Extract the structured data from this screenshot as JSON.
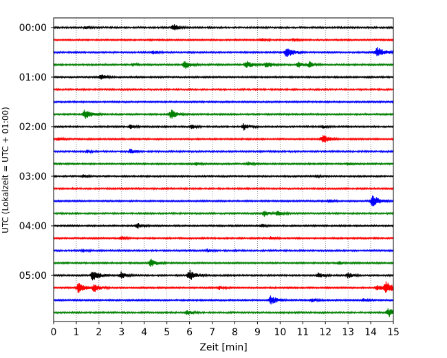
{
  "chart_data": {
    "type": "line",
    "title": "",
    "xlabel": "Zeit  [min]",
    "ylabel": "UTC (Lokalzeit = UTC + 01:00)",
    "xlim": [
      0,
      15
    ],
    "x_ticks": [
      "0",
      "1",
      "2",
      "3",
      "4",
      "5",
      "6",
      "7",
      "8",
      "9",
      "10",
      "11",
      "12",
      "13",
      "14",
      "15"
    ],
    "y_tick_labels": [
      "00:00",
      "01:00",
      "02:00",
      "03:00",
      "04:00",
      "05:00"
    ],
    "y_tick_row_index": [
      0,
      4,
      8,
      12,
      16,
      20
    ],
    "grid": "vertical dotted at each minute",
    "trace_colors_cycle": [
      "#000000",
      "#ff0000",
      "#0000ff",
      "#008000"
    ],
    "rows": [
      {
        "start": "00:00",
        "events": [
          {
            "t": 5.3,
            "a": 0.6
          },
          {
            "t": 1.4,
            "a": 0.25
          }
        ]
      },
      {
        "start": "00:15",
        "events": [
          {
            "t": 9.2,
            "a": 0.3
          },
          {
            "t": 10.6,
            "a": 0.25
          }
        ]
      },
      {
        "start": "00:30",
        "events": [
          {
            "t": 10.3,
            "a": 1.0
          },
          {
            "t": 14.3,
            "a": 1.0
          },
          {
            "t": 4.4,
            "a": 0.3
          }
        ]
      },
      {
        "start": "00:45",
        "events": [
          {
            "t": 5.8,
            "a": 0.7
          },
          {
            "t": 8.5,
            "a": 0.7
          },
          {
            "t": 9.4,
            "a": 0.6
          },
          {
            "t": 10.8,
            "a": 0.5
          },
          {
            "t": 11.3,
            "a": 0.5
          },
          {
            "t": 3.5,
            "a": 0.25
          }
        ]
      },
      {
        "start": "01:00",
        "events": [
          {
            "t": 2.1,
            "a": 0.5
          }
        ]
      },
      {
        "start": "01:15",
        "events": []
      },
      {
        "start": "01:30",
        "events": []
      },
      {
        "start": "01:45",
        "events": [
          {
            "t": 1.4,
            "a": 0.9
          },
          {
            "t": 5.2,
            "a": 0.8
          }
        ]
      },
      {
        "start": "02:00",
        "events": [
          {
            "t": 3.4,
            "a": 0.35
          },
          {
            "t": 6.1,
            "a": 0.3
          },
          {
            "t": 8.4,
            "a": 0.6
          },
          {
            "t": 11.9,
            "a": 0.25
          }
        ]
      },
      {
        "start": "02:15",
        "events": [
          {
            "t": 11.9,
            "a": 0.9
          },
          {
            "t": 0.2,
            "a": 0.3
          }
        ]
      },
      {
        "start": "02:30",
        "events": [
          {
            "t": 3.4,
            "a": 0.45
          },
          {
            "t": 1.5,
            "a": 0.2
          }
        ]
      },
      {
        "start": "02:45",
        "events": [
          {
            "t": 6.3,
            "a": 0.3
          },
          {
            "t": 8.6,
            "a": 0.35
          },
          {
            "t": 13.0,
            "a": 0.25
          }
        ]
      },
      {
        "start": "03:00",
        "events": [
          {
            "t": 1.3,
            "a": 0.3
          },
          {
            "t": 11.6,
            "a": 0.2
          }
        ]
      },
      {
        "start": "03:15",
        "events": []
      },
      {
        "start": "03:30",
        "events": [
          {
            "t": 14.1,
            "a": 1.0
          },
          {
            "t": 12.2,
            "a": 0.25
          }
        ]
      },
      {
        "start": "03:45",
        "events": [
          {
            "t": 9.3,
            "a": 0.5
          },
          {
            "t": 9.9,
            "a": 0.45
          }
        ]
      },
      {
        "start": "04:00",
        "events": [
          {
            "t": 3.7,
            "a": 0.5
          },
          {
            "t": 9.2,
            "a": 0.3
          }
        ]
      },
      {
        "start": "04:15",
        "events": [
          {
            "t": 3.0,
            "a": 0.3
          },
          {
            "t": 9.6,
            "a": 0.25
          }
        ]
      },
      {
        "start": "04:30",
        "events": [
          {
            "t": 1.3,
            "a": 0.25
          },
          {
            "t": 6.8,
            "a": 0.25
          }
        ]
      },
      {
        "start": "04:45",
        "events": [
          {
            "t": 4.3,
            "a": 0.7
          },
          {
            "t": 12.6,
            "a": 0.25
          }
        ]
      },
      {
        "start": "05:00",
        "events": [
          {
            "t": 1.75,
            "a": 1.0
          },
          {
            "t": 3.0,
            "a": 0.6
          },
          {
            "t": 6.0,
            "a": 1.0
          },
          {
            "t": 11.7,
            "a": 0.5
          },
          {
            "t": 13.0,
            "a": 0.5
          }
        ]
      },
      {
        "start": "05:15",
        "events": [
          {
            "t": 1.1,
            "a": 0.9
          },
          {
            "t": 1.8,
            "a": 0.7
          },
          {
            "t": 14.7,
            "a": 1.0
          },
          {
            "t": 14.3,
            "a": 0.6
          },
          {
            "t": 7.3,
            "a": 0.3
          }
        ]
      },
      {
        "start": "05:30",
        "events": [
          {
            "t": 9.6,
            "a": 0.8
          },
          {
            "t": 11.4,
            "a": 0.4
          },
          {
            "t": 13.7,
            "a": 0.35
          }
        ]
      },
      {
        "start": "05:45",
        "events": [
          {
            "t": 14.8,
            "a": 0.8
          },
          {
            "t": 5.9,
            "a": 0.4
          }
        ]
      }
    ]
  }
}
